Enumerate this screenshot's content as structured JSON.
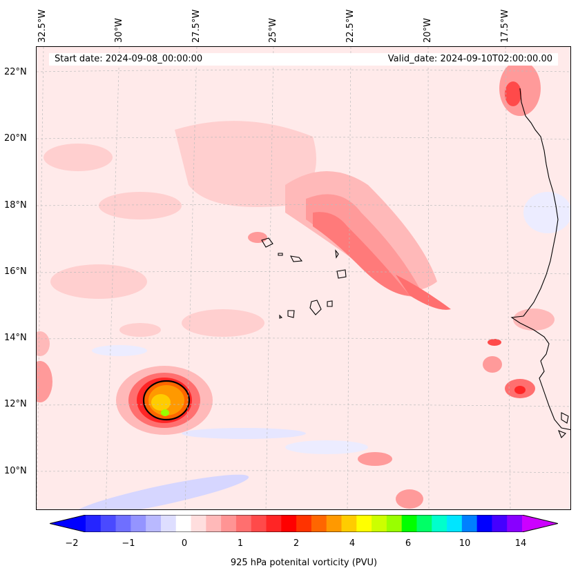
{
  "map": {
    "title_start": "Start date: 2024-09-08_00:00:00",
    "title_valid": "Valid_date: 2024-09-10T02:00:00.00",
    "lon_labels": [
      "32.5°W",
      "30°W",
      "27.5°W",
      "25°W",
      "22.5°W",
      "20°W",
      "17.5°W"
    ],
    "lat_labels": [
      "22°N",
      "20°N",
      "18°N",
      "16°N",
      "14°N",
      "12°N",
      "10°N"
    ],
    "gridlines": true,
    "field": "925 hPa potential vorticity"
  },
  "colorbar": {
    "label": "925 hPa potenital vorticity (PVU)",
    "ticks": [
      "−2",
      "−1",
      "0",
      "1",
      "2",
      "4",
      "6",
      "10",
      "14"
    ],
    "colors": [
      "#0000ff",
      "#2525ff",
      "#4a4aff",
      "#6f6fff",
      "#9494ff",
      "#b9b9ff",
      "#dedeff",
      "#ffffff",
      "#ffdede",
      "#ffb9b9",
      "#ff9494",
      "#ff6f6f",
      "#ff4a4a",
      "#ff2525",
      "#ff0000",
      "#ff3300",
      "#ff6600",
      "#ff9900",
      "#ffcc00",
      "#ffff00",
      "#ccff00",
      "#99ff00",
      "#00ff00",
      "#00ff66",
      "#00ffcc",
      "#00e5ff",
      "#0080ff",
      "#0000ff",
      "#4400ff",
      "#8800ff",
      "#cc00ff"
    ],
    "extend": "both"
  }
}
